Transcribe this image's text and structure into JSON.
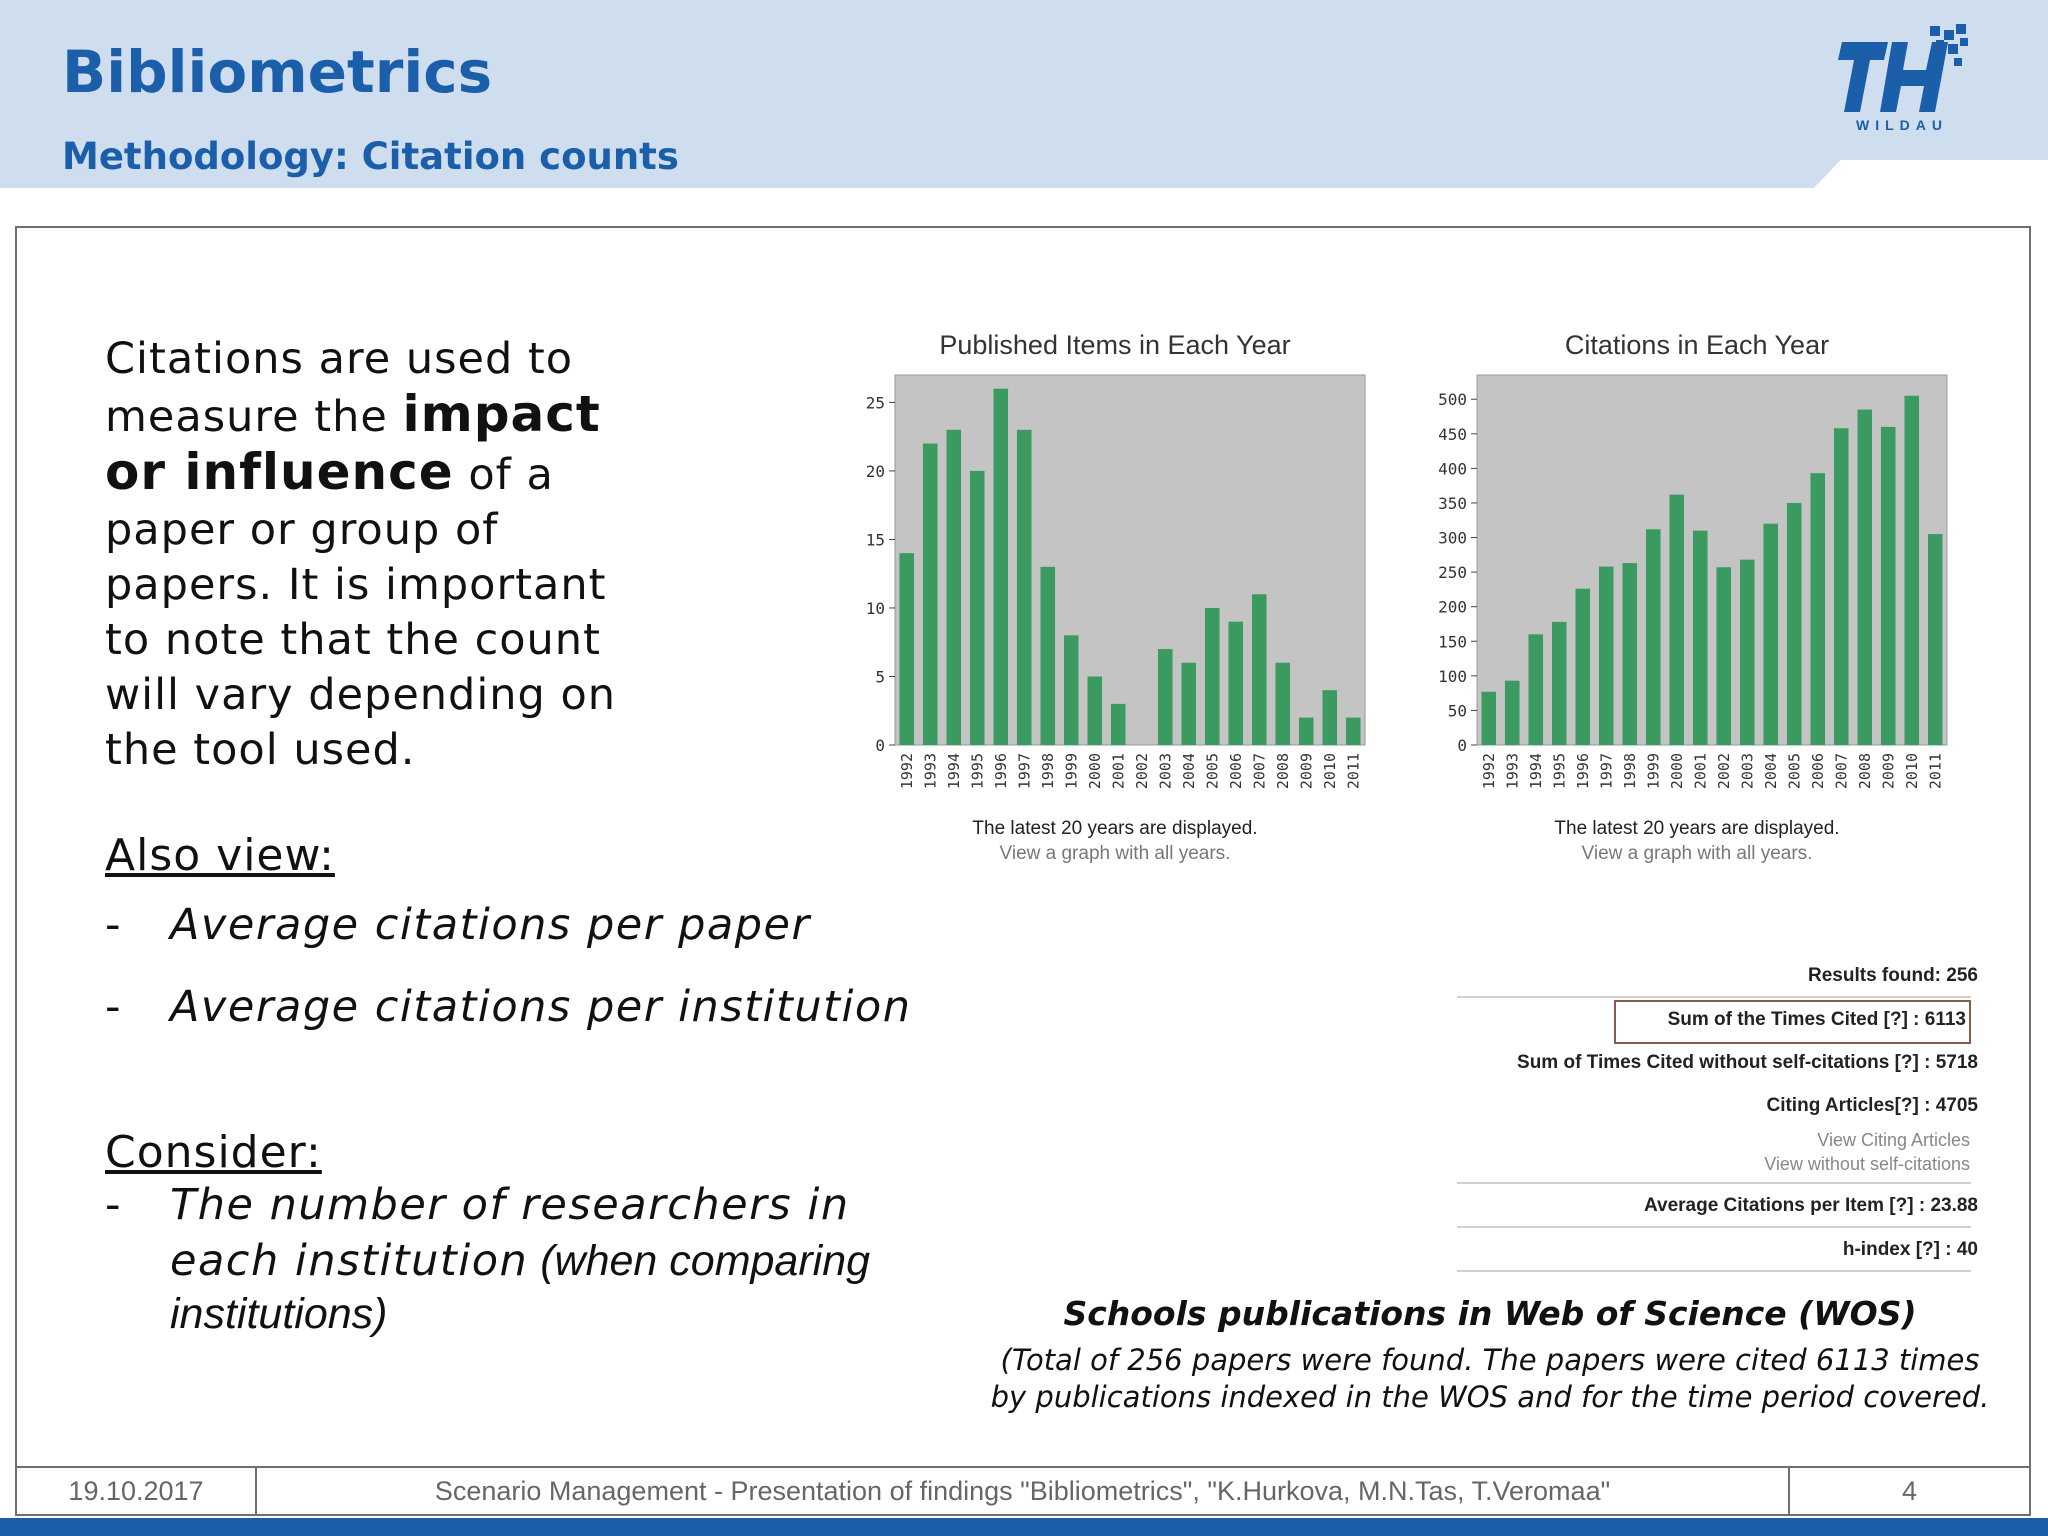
{
  "header": {
    "title": "Bibliometrics",
    "subtitle": "Methodology: Citation counts",
    "logo_text": "WILDAU"
  },
  "body": {
    "p1": "Citations are used to measure the ",
    "p1_bold": "impact or influence",
    "p1_rest": " of a paper or group of papers. It is important to note that the count will vary depending on the tool used.",
    "also_view": "Also view:",
    "also_items": [
      "Average citations per paper",
      "Average citations per institution"
    ],
    "consider": "Consider:",
    "consider_line1": "The number of researchers in",
    "consider_line2a": "each institution",
    "consider_line2b": " (when comparing",
    "consider_line3": "institutions)",
    "dash": "-"
  },
  "chart_data": [
    {
      "type": "bar",
      "title": "Published Items in Each Year",
      "categories": [
        "1992",
        "1993",
        "1994",
        "1995",
        "1996",
        "1997",
        "1998",
        "1999",
        "2000",
        "2001",
        "2002",
        "2003",
        "2004",
        "2005",
        "2006",
        "2007",
        "2008",
        "2009",
        "2010",
        "2011"
      ],
      "values": [
        14,
        22,
        23,
        20,
        26,
        23,
        13,
        8,
        5,
        3,
        0,
        7,
        6,
        10,
        9,
        11,
        6,
        2,
        4,
        2
      ],
      "yticks": [
        0,
        5,
        10,
        15,
        20,
        25
      ],
      "ylim": [
        0,
        27
      ],
      "bar_color": "#3a9a5f",
      "plot_bg": "#c4c4c4",
      "note": "The latest 20 years are displayed.",
      "link": "View a graph with all years."
    },
    {
      "type": "bar",
      "title": "Citations in Each Year",
      "categories": [
        "1992",
        "1993",
        "1994",
        "1995",
        "1996",
        "1997",
        "1998",
        "1999",
        "2000",
        "2001",
        "2002",
        "2003",
        "2004",
        "2005",
        "2006",
        "2007",
        "2008",
        "2009",
        "2010",
        "2011"
      ],
      "values": [
        77,
        93,
        160,
        178,
        226,
        258,
        263,
        312,
        362,
        310,
        257,
        268,
        320,
        350,
        393,
        458,
        485,
        460,
        505,
        305
      ],
      "yticks": [
        0,
        50,
        100,
        150,
        200,
        250,
        300,
        350,
        400,
        450,
        500
      ],
      "ylim": [
        0,
        535
      ],
      "bar_color": "#3a9a5f",
      "plot_bg": "#c4c4c4",
      "note": "The latest 20 years are displayed.",
      "link": "View a graph with all years."
    }
  ],
  "stats": {
    "results_found": "Results found:  256",
    "sum_times_cited": "Sum of the Times Cited [?] :  6113",
    "without_self": "Sum of Times Cited without self-citations [?] :  5718",
    "citing_articles": "Citing Articles[?] :  4705",
    "view_citing": "View Citing Articles",
    "view_without_self": "View without self-citations",
    "average": "Average Citations per Item [?] :  23.88",
    "h_index": "h-index [?] :  40"
  },
  "caption": {
    "title": "Schools publications in Web of Science (WOS)",
    "body": "(Total of 256 papers were found. The papers were cited 6113 times by publications indexed in the WOS and for the time period covered."
  },
  "footer": {
    "date": "19.10.2017",
    "center": "Scenario Management - Presentation of findings \"Bibliometrics\", \"K.Hurkova, M.N.Tas, T.Veromaa\"",
    "page": "4"
  }
}
